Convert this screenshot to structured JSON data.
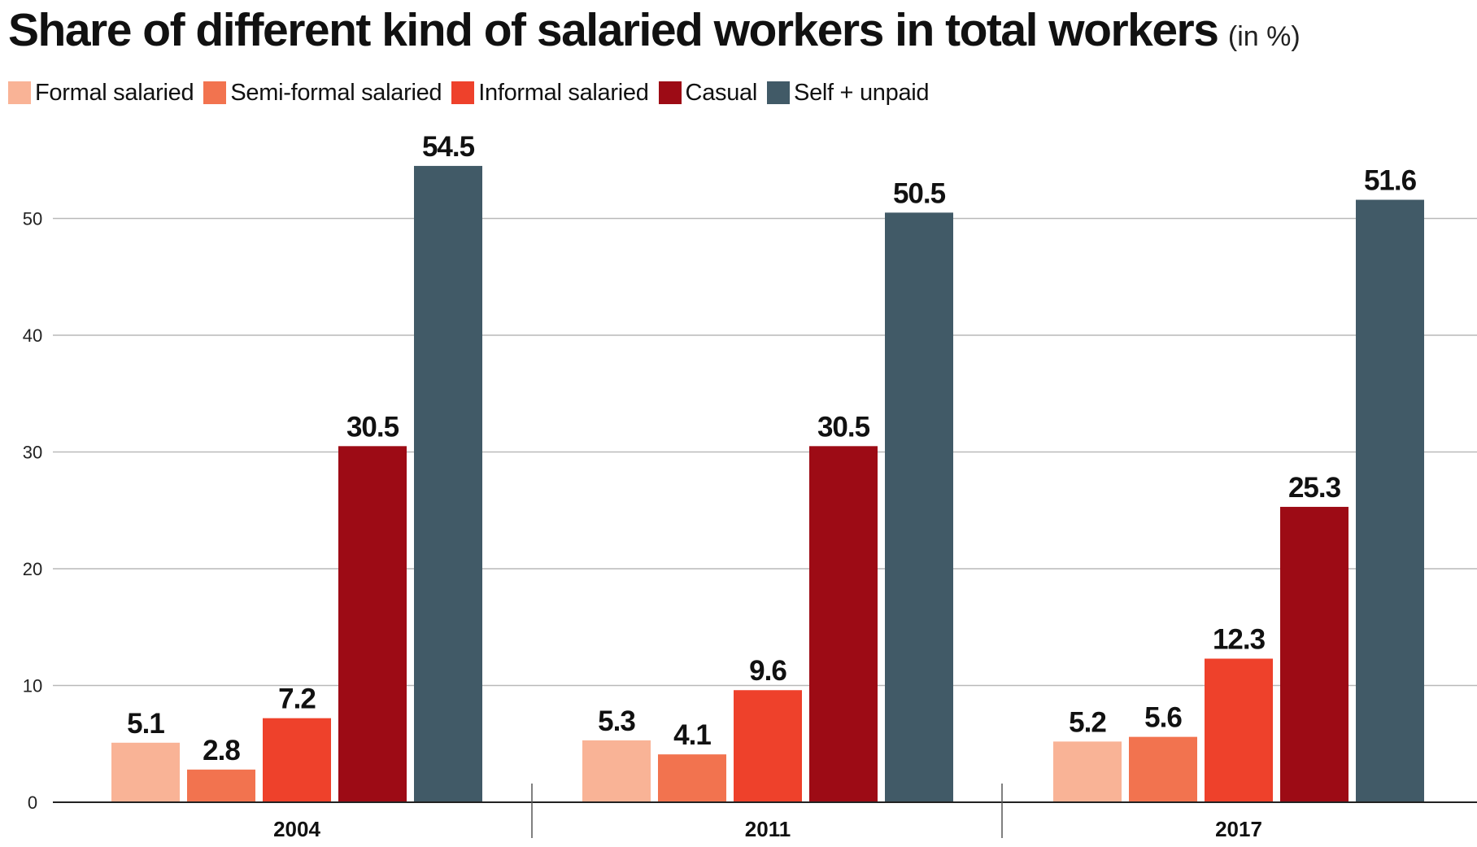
{
  "chart_data": {
    "type": "bar",
    "title": "Share of different kind of salaried workers in total workers",
    "title_unit": "(in %)",
    "categories": [
      "2004",
      "2011",
      "2017"
    ],
    "series": [
      {
        "name": "Formal salaried",
        "color": "#f9b396",
        "values": [
          5.1,
          5.3,
          5.2
        ]
      },
      {
        "name": "Semi-formal salaried",
        "color": "#f2734f",
        "values": [
          2.8,
          4.1,
          5.6
        ]
      },
      {
        "name": "Informal salaried",
        "color": "#ee412b",
        "values": [
          7.2,
          9.6,
          12.3
        ]
      },
      {
        "name": "Casual",
        "color": "#9d0b15",
        "values": [
          30.5,
          30.5,
          25.3
        ]
      },
      {
        "name": "Self + unpaid",
        "color": "#415a67",
        "values": [
          54.5,
          50.5,
          51.6
        ]
      }
    ],
    "data_labels": [
      [
        "5.1",
        "2.8",
        "7.2",
        "30.5",
        "54.5"
      ],
      [
        "5.3",
        "4.1",
        "9.6",
        "30.5",
        "50.5"
      ],
      [
        "5.2",
        "5.6",
        "12.3",
        "25.3",
        "51.6"
      ]
    ],
    "y_ticks": [
      0,
      10,
      20,
      30,
      40,
      50
    ],
    "y_tick_labels": [
      "0",
      "10",
      "20",
      "30",
      "40",
      "50"
    ],
    "ylim": [
      0,
      57
    ],
    "xlabel": "",
    "ylabel": "",
    "grid": true,
    "legend_position": "top-left"
  }
}
